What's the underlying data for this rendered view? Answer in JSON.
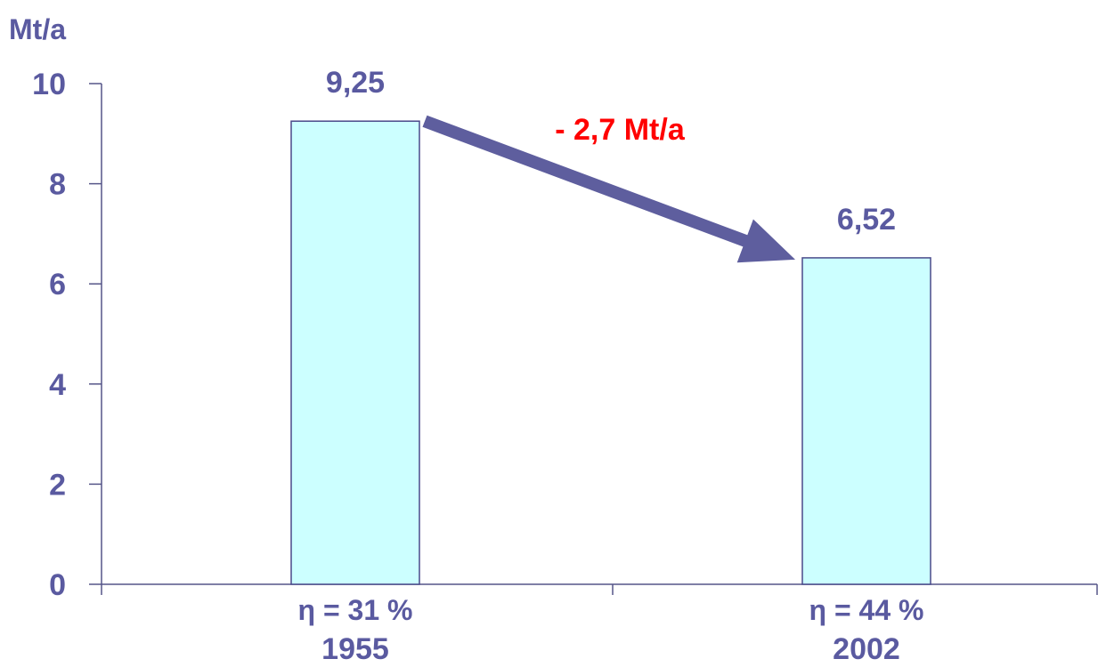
{
  "chart_data": {
    "type": "bar",
    "ylabel": "Mt/a",
    "ylim": [
      0,
      10
    ],
    "yticks": [
      "0",
      "2",
      "4",
      "6",
      "8",
      "10"
    ],
    "categories": [
      "1955",
      "2002"
    ],
    "efficiency_labels": [
      "η = 31 %",
      "η = 44 %"
    ],
    "values": [
      9.25,
      6.52
    ],
    "value_labels": [
      "9,25",
      "6,52"
    ],
    "annotation": "- 2,7 Mt/a",
    "grid": false,
    "colors": {
      "bar_fill": "#ccffff",
      "bar_stroke": "#4a4a8a",
      "axis": "#555588",
      "text": "#5a5aa0",
      "arrow": "#5e5e9e",
      "annotation": "#ff0000"
    }
  }
}
